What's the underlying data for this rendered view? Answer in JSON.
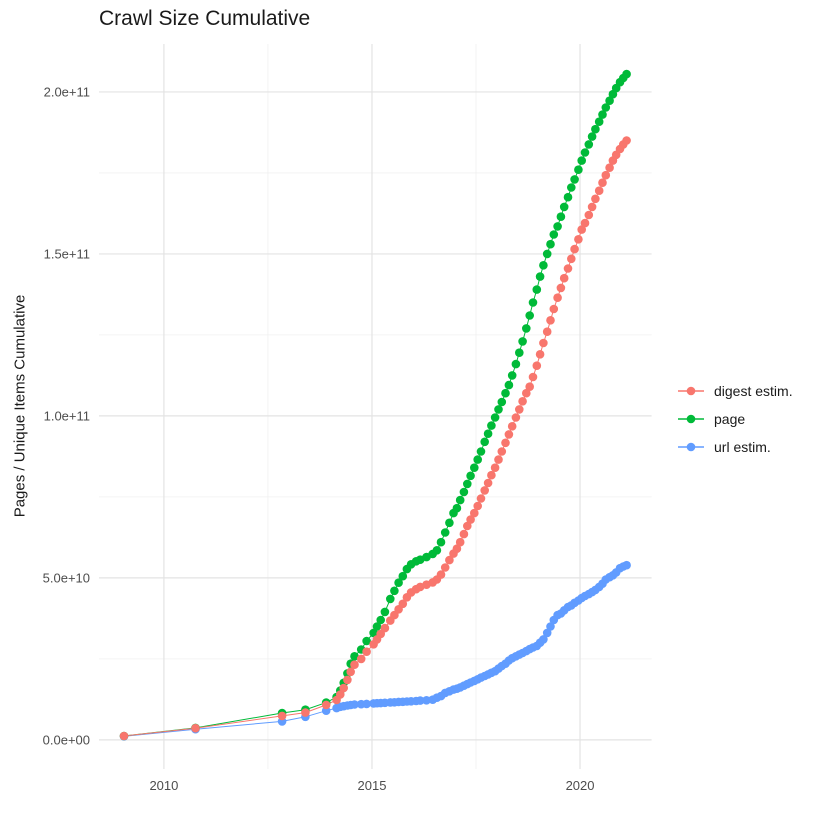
{
  "title": "Crawl Size Cumulative",
  "y_axis_title": "Pages / Unique Items Cumulative",
  "x_axis_title": "",
  "legend": {
    "position": "right",
    "items": [
      {
        "label": "digest estim.",
        "color": "#F8766D"
      },
      {
        "label": "page",
        "color": "#00BA38"
      },
      {
        "label": "url estim.",
        "color": "#619CFF"
      }
    ]
  },
  "colors": {
    "digest": "#F8766D",
    "page": "#00BA38",
    "url": "#619CFF",
    "grid_major": "#E3E3E3",
    "grid_minor": "#F0F0F0",
    "tick_text": "#4d4d4d",
    "title_text": "#1a1a1a",
    "background": "#ffffff"
  },
  "chart_data": {
    "type": "scatter",
    "title": "Crawl Size Cumulative",
    "xlabel": "",
    "ylabel": "Pages / Unique Items Cumulative",
    "grid": true,
    "legend_position": "right",
    "xlim": [
      2008.44,
      2021.72
    ],
    "ylim_billions": [
      -9,
      214.8
    ],
    "x_ticks": [
      {
        "v": 2010,
        "label": "2010"
      },
      {
        "v": 2015,
        "label": "2015"
      },
      {
        "v": 2020,
        "label": "2020"
      }
    ],
    "x_minor_ticks": [
      2012.5,
      2017.5
    ],
    "y_ticks": [
      {
        "v": 0,
        "label": "0.0e+00"
      },
      {
        "v": 50,
        "label": "5.0e+10"
      },
      {
        "v": 100,
        "label": "1.0e+11"
      },
      {
        "v": 150,
        "label": "1.5e+11"
      },
      {
        "v": 200,
        "label": "2.0e+11"
      }
    ],
    "y_minor_ticks": [
      25,
      75,
      125,
      175
    ],
    "value_unit": "billions (1e9) of pages / unique items, cumulative",
    "x": [
      2009.04,
      2010.76,
      2012.84,
      2013.4,
      2013.9,
      2014.15,
      2014.24,
      2014.32,
      2014.41,
      2014.49,
      2014.58,
      2014.74,
      2014.87,
      2015.04,
      2015.12,
      2015.21,
      2015.31,
      2015.44,
      2015.54,
      2015.64,
      2015.74,
      2015.84,
      2015.94,
      2016.06,
      2016.16,
      2016.31,
      2016.46,
      2016.56,
      2016.66,
      2016.76,
      2016.86,
      2016.96,
      2017.04,
      2017.12,
      2017.21,
      2017.29,
      2017.37,
      2017.46,
      2017.54,
      2017.62,
      2017.71,
      2017.79,
      2017.87,
      2017.96,
      2018.04,
      2018.12,
      2018.21,
      2018.29,
      2018.37,
      2018.46,
      2018.54,
      2018.62,
      2018.71,
      2018.79,
      2018.87,
      2018.96,
      2019.04,
      2019.12,
      2019.21,
      2019.29,
      2019.37,
      2019.46,
      2019.54,
      2019.62,
      2019.71,
      2019.79,
      2019.87,
      2019.96,
      2020.04,
      2020.12,
      2020.21,
      2020.29,
      2020.37,
      2020.46,
      2020.54,
      2020.62,
      2020.71,
      2020.79,
      2020.87,
      2020.96,
      2021.04,
      2021.12
    ],
    "series": [
      {
        "name": "digest estim.",
        "color": "#F8766D",
        "values": [
          1.2,
          3.6,
          7.4,
          8.4,
          10.8,
          12.3,
          14,
          16,
          18.5,
          21,
          23.2,
          25,
          27.2,
          29.5,
          31,
          32.7,
          34.5,
          36.8,
          38.5,
          40.3,
          42,
          44,
          45.5,
          46.5,
          47.2,
          47.9,
          48.6,
          49.5,
          51,
          53.2,
          55.5,
          57.5,
          59,
          61,
          63.5,
          66,
          68,
          70,
          72.2,
          74.5,
          77,
          79.3,
          81.7,
          84,
          86.5,
          89,
          91.7,
          94.3,
          96.8,
          99.5,
          102,
          104.5,
          107,
          109,
          112,
          115.5,
          119,
          122.5,
          126,
          129.5,
          133,
          136.5,
          139.5,
          142.5,
          145.5,
          148.5,
          151.5,
          154.5,
          157.5,
          159.5,
          162,
          164.5,
          167,
          169.5,
          172,
          174.3,
          176.6,
          178.8,
          180.6,
          182.4,
          183.8,
          185
        ]
      },
      {
        "name": "page",
        "color": "#00BA38",
        "values": [
          1.2,
          3.7,
          8.3,
          9.3,
          11.5,
          13.2,
          15.2,
          17.6,
          20.5,
          23.5,
          25.8,
          27.9,
          30.5,
          33,
          35,
          37,
          39.5,
          43.5,
          46,
          48.5,
          50.5,
          52.7,
          54.2,
          55.1,
          55.6,
          56.4,
          57.4,
          58.5,
          61,
          64,
          67,
          70,
          71.5,
          74,
          76.5,
          79,
          81.5,
          84,
          86.5,
          89,
          92,
          94.5,
          97,
          99.5,
          102,
          104.3,
          107,
          109.5,
          112.5,
          116,
          119.5,
          123,
          127,
          131,
          135,
          139,
          143,
          146.5,
          150,
          153,
          156,
          158.5,
          161.5,
          164.5,
          167.5,
          170.5,
          173,
          176,
          178.8,
          181.3,
          183.8,
          186.2,
          188.5,
          190.8,
          193,
          195.2,
          197.3,
          199.3,
          201.2,
          203,
          204.3,
          205.5
        ]
      },
      {
        "name": "url estim.",
        "color": "#619CFF",
        "values": [
          1.1,
          3.3,
          5.7,
          7.1,
          9.0,
          9.8,
          10.2,
          10.4,
          10.6,
          10.75,
          10.9,
          11.0,
          11.1,
          11.25,
          11.3,
          11.35,
          11.45,
          11.55,
          11.6,
          11.7,
          11.75,
          11.85,
          11.9,
          12,
          12.1,
          12.2,
          12.4,
          13,
          13.5,
          14.5,
          15,
          15.5,
          15.8,
          16.2,
          16.7,
          17.2,
          17.7,
          18.2,
          18.7,
          19.2,
          19.7,
          20.2,
          20.7,
          21.2,
          22,
          22.8,
          23.5,
          24.5,
          25.2,
          25.8,
          26.3,
          26.8,
          27.4,
          28,
          28.5,
          29,
          30,
          31,
          33,
          35,
          37,
          38.5,
          39,
          40,
          41,
          41.5,
          42.3,
          43,
          43.8,
          44.4,
          45,
          45.6,
          46.3,
          47.2,
          48.2,
          49.5,
          50.2,
          50.8,
          51.7,
          53,
          53.5,
          53.9
        ]
      }
    ]
  }
}
